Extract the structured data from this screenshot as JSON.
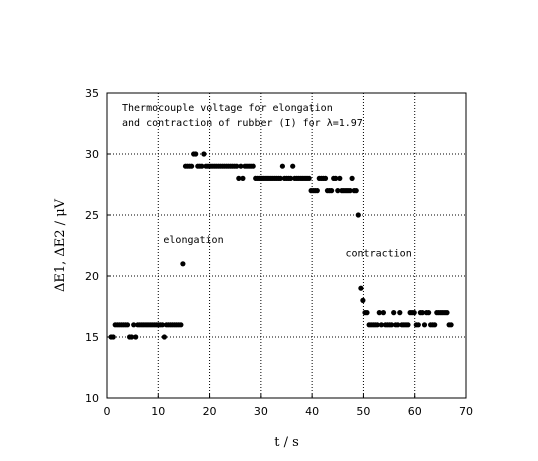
{
  "chart_data": {
    "type": "scatter",
    "title_lines": [
      "Thermocouple voltage for elongation",
      "and contraction of rubber (I) for λ=1.97"
    ],
    "xlabel": "t / s",
    "ylabel": "ΔE1, ΔE2 / μV",
    "xlim": [
      0,
      70
    ],
    "ylim": [
      10,
      35
    ],
    "x_ticks": [
      0,
      10,
      20,
      30,
      40,
      50,
      60,
      70
    ],
    "y_ticks": [
      10,
      15,
      20,
      25,
      30,
      35
    ],
    "grid": true,
    "annotations": [
      {
        "text": "elongation",
        "x": 11,
        "y": 22.7
      },
      {
        "text": "contraction",
        "x": 46.5,
        "y": 21.6
      }
    ],
    "series": [
      {
        "marker": "dot",
        "color": "#000000",
        "points": [
          [
            0.8,
            15
          ],
          [
            1.2,
            15
          ],
          [
            1.6,
            16
          ],
          [
            2.0,
            16
          ],
          [
            2.4,
            16
          ],
          [
            2.8,
            16
          ],
          [
            3.2,
            16
          ],
          [
            3.6,
            16
          ],
          [
            4.0,
            16
          ],
          [
            4.4,
            15
          ],
          [
            4.8,
            15
          ],
          [
            5.2,
            16
          ],
          [
            5.6,
            15
          ],
          [
            6.0,
            16
          ],
          [
            6.4,
            16
          ],
          [
            6.8,
            16
          ],
          [
            7.2,
            16
          ],
          [
            7.6,
            16
          ],
          [
            8.0,
            16
          ],
          [
            8.4,
            16
          ],
          [
            8.8,
            16
          ],
          [
            9.2,
            16
          ],
          [
            9.6,
            16
          ],
          [
            10.0,
            16
          ],
          [
            10.4,
            16
          ],
          [
            10.8,
            16
          ],
          [
            11.2,
            15
          ],
          [
            11.6,
            16
          ],
          [
            12.0,
            16
          ],
          [
            12.4,
            16
          ],
          [
            12.8,
            16
          ],
          [
            13.2,
            16
          ],
          [
            13.6,
            16
          ],
          [
            14.0,
            16
          ],
          [
            14.4,
            16
          ],
          [
            14.8,
            21
          ],
          [
            15.3,
            29
          ],
          [
            15.7,
            29
          ],
          [
            16.1,
            29
          ],
          [
            16.5,
            29
          ],
          [
            16.9,
            30
          ],
          [
            17.3,
            30
          ],
          [
            17.7,
            29
          ],
          [
            18.1,
            29
          ],
          [
            18.5,
            29
          ],
          [
            18.9,
            30
          ],
          [
            19.3,
            29
          ],
          [
            19.7,
            29
          ],
          [
            20.1,
            29
          ],
          [
            20.5,
            29
          ],
          [
            20.9,
            29
          ],
          [
            21.3,
            29
          ],
          [
            21.7,
            29
          ],
          [
            22.1,
            29
          ],
          [
            22.5,
            29
          ],
          [
            22.9,
            29
          ],
          [
            23.3,
            29
          ],
          [
            23.7,
            29
          ],
          [
            24.1,
            29
          ],
          [
            24.5,
            29
          ],
          [
            24.9,
            29
          ],
          [
            25.3,
            29
          ],
          [
            25.7,
            28
          ],
          [
            26.1,
            29
          ],
          [
            26.5,
            28
          ],
          [
            26.9,
            29
          ],
          [
            27.3,
            29
          ],
          [
            27.7,
            29
          ],
          [
            28.1,
            29
          ],
          [
            28.5,
            29
          ],
          [
            29.0,
            28
          ],
          [
            29.4,
            28
          ],
          [
            29.8,
            28
          ],
          [
            30.2,
            28
          ],
          [
            30.6,
            28
          ],
          [
            31.0,
            28
          ],
          [
            31.4,
            28
          ],
          [
            31.8,
            28
          ],
          [
            32.2,
            28
          ],
          [
            32.6,
            28
          ],
          [
            33.0,
            28
          ],
          [
            33.4,
            28
          ],
          [
            33.8,
            28
          ],
          [
            34.2,
            29
          ],
          [
            34.6,
            28
          ],
          [
            35.0,
            28
          ],
          [
            35.4,
            28
          ],
          [
            35.8,
            28
          ],
          [
            36.2,
            29
          ],
          [
            36.6,
            28
          ],
          [
            37.0,
            28
          ],
          [
            37.4,
            28
          ],
          [
            37.8,
            28
          ],
          [
            38.2,
            28
          ],
          [
            38.6,
            28
          ],
          [
            39.0,
            28
          ],
          [
            39.4,
            28
          ],
          [
            39.8,
            27
          ],
          [
            40.2,
            27
          ],
          [
            40.6,
            27
          ],
          [
            41.0,
            27
          ],
          [
            41.4,
            28
          ],
          [
            41.8,
            28
          ],
          [
            42.2,
            28
          ],
          [
            42.6,
            28
          ],
          [
            43.0,
            27
          ],
          [
            43.4,
            27
          ],
          [
            43.8,
            27
          ],
          [
            44.2,
            28
          ],
          [
            44.6,
            28
          ],
          [
            45.0,
            27
          ],
          [
            45.4,
            28
          ],
          [
            45.8,
            27
          ],
          [
            46.2,
            27
          ],
          [
            46.6,
            27
          ],
          [
            47.0,
            27
          ],
          [
            47.4,
            27
          ],
          [
            47.8,
            28
          ],
          [
            48.2,
            27
          ],
          [
            48.6,
            27
          ],
          [
            49.0,
            25
          ],
          [
            49.5,
            19
          ],
          [
            49.9,
            18
          ],
          [
            50.3,
            17
          ],
          [
            50.7,
            17
          ],
          [
            51.1,
            16
          ],
          [
            51.5,
            16
          ],
          [
            51.9,
            16
          ],
          [
            52.3,
            16
          ],
          [
            52.7,
            16
          ],
          [
            53.1,
            17
          ],
          [
            53.5,
            16
          ],
          [
            53.9,
            17
          ],
          [
            54.3,
            16
          ],
          [
            54.7,
            16
          ],
          [
            55.1,
            16
          ],
          [
            55.5,
            16
          ],
          [
            55.9,
            17
          ],
          [
            56.3,
            16
          ],
          [
            56.7,
            16
          ],
          [
            57.1,
            17
          ],
          [
            57.5,
            16
          ],
          [
            57.9,
            16
          ],
          [
            58.3,
            16
          ],
          [
            58.7,
            16
          ],
          [
            59.1,
            17
          ],
          [
            59.5,
            17
          ],
          [
            59.9,
            17
          ],
          [
            60.3,
            16
          ],
          [
            60.7,
            16
          ],
          [
            61.1,
            17
          ],
          [
            61.5,
            17
          ],
          [
            61.9,
            16
          ],
          [
            62.3,
            17
          ],
          [
            62.7,
            17
          ],
          [
            63.1,
            16
          ],
          [
            63.5,
            16
          ],
          [
            63.9,
            16
          ],
          [
            64.3,
            17
          ],
          [
            64.7,
            17
          ],
          [
            65.1,
            17
          ],
          [
            65.5,
            17
          ],
          [
            65.9,
            17
          ],
          [
            66.3,
            17
          ],
          [
            66.7,
            16
          ],
          [
            67.1,
            16
          ]
        ]
      }
    ]
  }
}
